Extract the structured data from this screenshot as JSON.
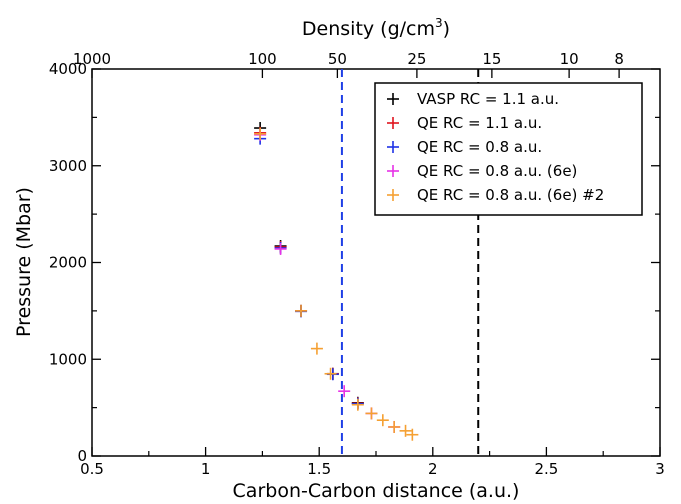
{
  "chart_data": {
    "type": "scatter",
    "xlabel": "Carbon-Carbon distance (a.u.)",
    "ylabel": "Pressure (Mbar)",
    "top_axis_label_main": "Density (g/cm",
    "top_axis_label_sup": "3",
    "top_axis_label_close": ")",
    "xlim": [
      0.5,
      3
    ],
    "ylim": [
      0,
      4000
    ],
    "x_ticks": [
      "0.5",
      "1",
      "1.5",
      "2",
      "2.5",
      "3"
    ],
    "y_ticks": [
      "0",
      "1000",
      "2000",
      "3000",
      "4000"
    ],
    "top_ticks": [
      {
        "label": "1000",
        "x": 0.5
      },
      {
        "label": "100",
        "x": 1.25
      },
      {
        "label": "50",
        "x": 1.58
      },
      {
        "label": "25",
        "x": 1.93
      },
      {
        "label": "15",
        "x": 2.26
      },
      {
        "label": "10",
        "x": 2.6
      },
      {
        "label": "8",
        "x": 2.82
      }
    ],
    "vlines": [
      {
        "x": 1.6,
        "color": "#1f3fe6"
      },
      {
        "x": 2.2,
        "color": "#000000"
      }
    ],
    "legend_position": "top-right",
    "series": [
      {
        "name": "VASP RC = 1.1 a.u.",
        "color": "#000000",
        "x": [
          1.24,
          1.33,
          1.42,
          1.56,
          1.67
        ],
        "y": [
          3390,
          2170,
          1500,
          850,
          550
        ]
      },
      {
        "name": "QE RC = 1.1 a.u.",
        "color": "#e0141e",
        "x": [
          1.24,
          1.33,
          1.42,
          1.56,
          1.67
        ],
        "y": [
          3340,
          2160,
          1500,
          850,
          545
        ]
      },
      {
        "name": "QE RC = 0.8 a.u.",
        "color": "#1e32e6",
        "x": [
          1.24,
          1.33,
          1.42,
          1.56,
          1.67
        ],
        "y": [
          3280,
          2150,
          1495,
          845,
          540
        ]
      },
      {
        "name": "QE RC = 0.8 a.u. (6e)",
        "color": "#e632e6",
        "x": [
          1.24,
          1.33,
          1.61,
          1.73,
          1.83
        ],
        "y": [
          3320,
          2140,
          670,
          440,
          300
        ]
      },
      {
        "name": "QE RC = 0.8 a.u. (6e) #2",
        "color": "#f5a032",
        "x": [
          1.24,
          1.42,
          1.49,
          1.55,
          1.67,
          1.73,
          1.78,
          1.83,
          1.88,
          1.91
        ],
        "y": [
          3330,
          1500,
          1110,
          850,
          530,
          440,
          370,
          300,
          260,
          220
        ]
      }
    ]
  }
}
